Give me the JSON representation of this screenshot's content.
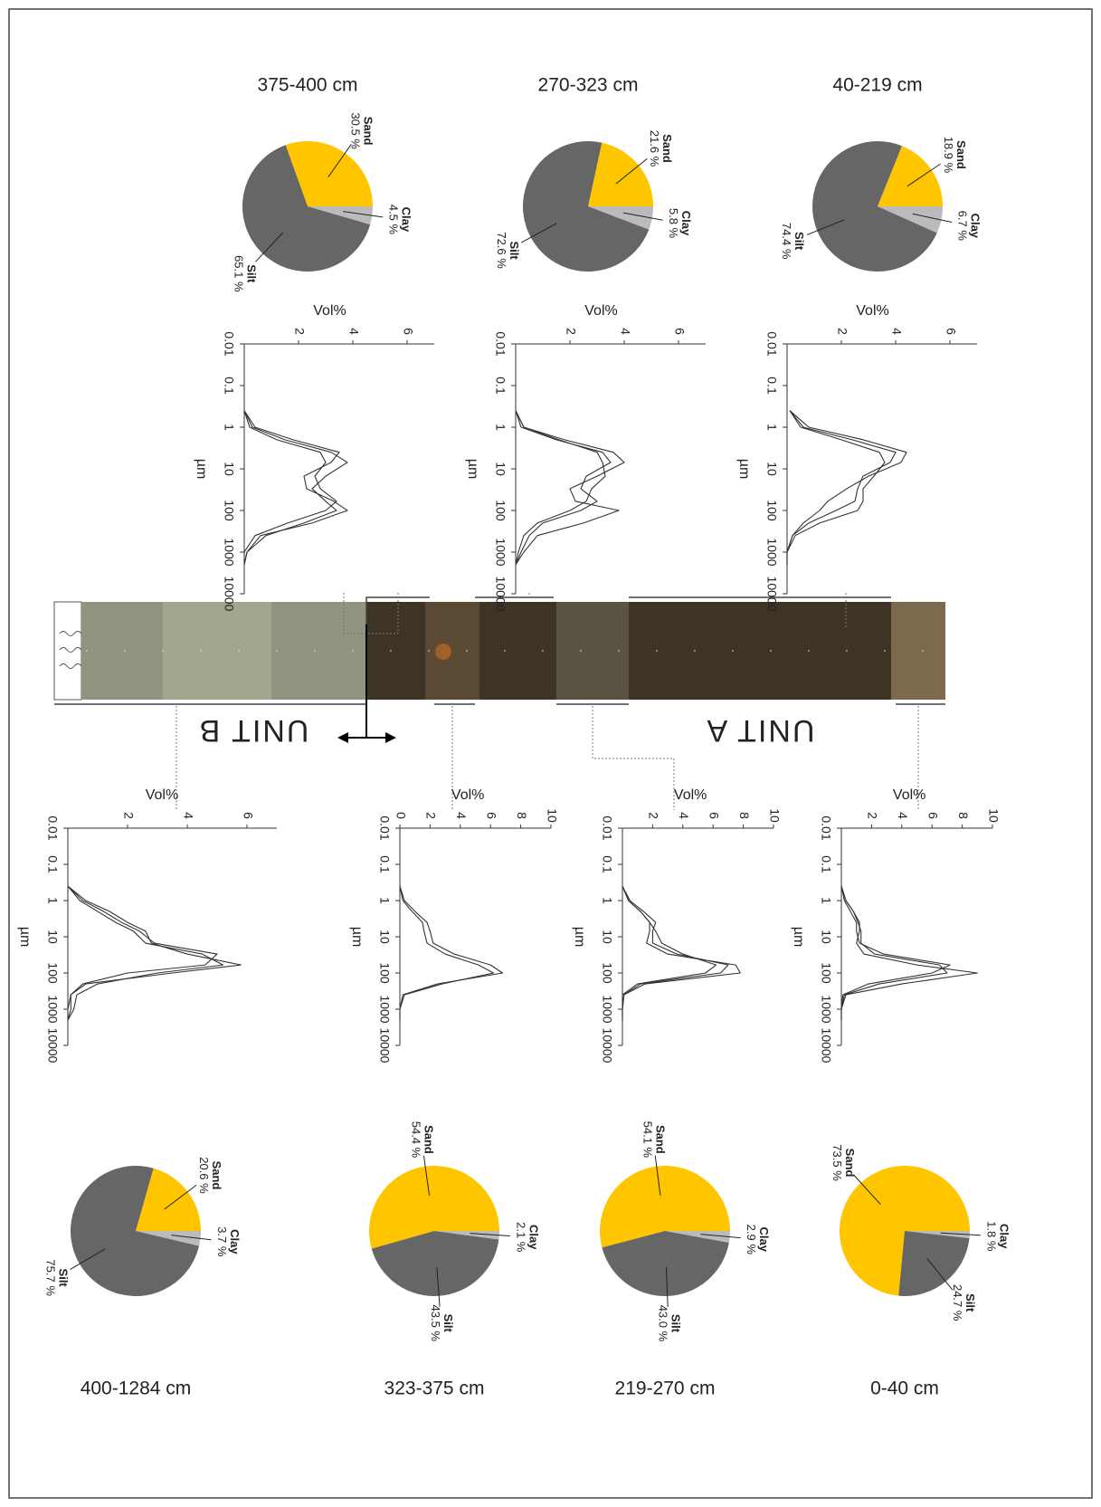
{
  "chart_data": [
    {
      "type": "pie",
      "title": "375-400 cm",
      "categories": [
        "Sand",
        "Clay",
        "Silt"
      ],
      "values": [
        30.5,
        4.5,
        65.1
      ],
      "value_labels": [
        "30.5 %",
        "4.5 %",
        "65.1 %"
      ],
      "colors": [
        "#ffc600",
        "#bbbbbb",
        "#666666"
      ]
    },
    {
      "type": "line",
      "x_label": "µm",
      "y_label": "Vol%",
      "log_x": true,
      "xlim": [
        0.01,
        10000
      ],
      "xticks": [
        0.01,
        0.1,
        1,
        10,
        100,
        1000,
        10000
      ],
      "ylim": [
        0,
        7
      ],
      "yticks": [
        2,
        4,
        6
      ],
      "x": [
        0.4,
        1,
        2,
        4,
        7,
        15,
        30,
        60,
        100,
        200,
        400,
        1000,
        2000
      ],
      "series": [
        {
          "color": "#333333",
          "values": [
            0,
            0.3,
            1.5,
            3.2,
            3.8,
            3.0,
            2.5,
            3.0,
            3.4,
            2.2,
            0.8,
            0.1,
            0
          ]
        },
        {
          "color": "#333333",
          "values": [
            0,
            0.4,
            1.8,
            3.5,
            3.2,
            2.2,
            2.3,
            3.3,
            3.8,
            2.5,
            0.6,
            0.1,
            0
          ]
        },
        {
          "color": "#333333",
          "values": [
            0,
            0.2,
            1.2,
            2.8,
            3.0,
            2.6,
            2.8,
            3.4,
            3.0,
            1.6,
            0.4,
            0,
            0
          ]
        }
      ]
    },
    {
      "type": "pie",
      "title": "270-323 cm",
      "categories": [
        "Sand",
        "Clay",
        "Silt"
      ],
      "values": [
        21.6,
        5.8,
        72.6
      ],
      "value_labels": [
        "21.6 %",
        "5.8 %",
        "72.6 %"
      ],
      "colors": [
        "#ffc600",
        "#bbbbbb",
        "#666666"
      ]
    },
    {
      "type": "line",
      "x_label": "µm",
      "y_label": "Vol%",
      "log_x": true,
      "xlim": [
        0.01,
        10000
      ],
      "xticks": [
        0.01,
        0.1,
        1,
        10,
        100,
        1000,
        10000
      ],
      "ylim": [
        0,
        7
      ],
      "yticks": [
        2,
        4,
        6
      ],
      "x": [
        0.4,
        1,
        2,
        4,
        7,
        15,
        30,
        60,
        100,
        200,
        400,
        1000,
        2000
      ],
      "series": [
        {
          "color": "#333333",
          "values": [
            0,
            0.3,
            1.8,
            3.6,
            4.0,
            3.0,
            2.0,
            2.2,
            3.8,
            2.5,
            0.8,
            0.3,
            0
          ]
        },
        {
          "color": "#333333",
          "values": [
            0,
            0.2,
            1.5,
            3.2,
            3.5,
            2.6,
            2.4,
            3.0,
            2.4,
            1.0,
            0.5,
            0.2,
            0
          ]
        },
        {
          "color": "#333333",
          "values": [
            0,
            0.3,
            1.6,
            3.0,
            3.2,
            3.3,
            2.8,
            2.6,
            2.0,
            0.8,
            0.3,
            0.1,
            0
          ]
        }
      ]
    },
    {
      "type": "pie",
      "title": "40-219 cm",
      "categories": [
        "Sand",
        "Clay",
        "Silt"
      ],
      "values": [
        18.9,
        6.7,
        74.4
      ],
      "value_labels": [
        "18.9 %",
        "6.7 %",
        "74.4 %"
      ],
      "colors": [
        "#ffc600",
        "#bbbbbb",
        "#666666"
      ]
    },
    {
      "type": "line",
      "x_label": "µm",
      "y_label": "Vol%",
      "log_x": true,
      "xlim": [
        0.01,
        10000
      ],
      "xticks": [
        0.01,
        0.1,
        1,
        10,
        100,
        1000,
        10000
      ],
      "ylim": [
        0,
        7
      ],
      "yticks": [
        2,
        4,
        6
      ],
      "x": [
        0.4,
        1,
        2,
        4,
        7,
        15,
        30,
        60,
        100,
        200,
        400,
        1000,
        2000
      ],
      "series": [
        {
          "color": "#333333",
          "values": [
            0.1,
            0.8,
            2.8,
            4.4,
            4.2,
            3.0,
            2.2,
            1.5,
            1.2,
            0.6,
            0.2,
            0,
            0
          ]
        },
        {
          "color": "#333333",
          "values": [
            0.1,
            0.6,
            2.4,
            4.0,
            3.8,
            2.8,
            2.6,
            2.5,
            1.8,
            0.8,
            0.2,
            0,
            0
          ]
        },
        {
          "color": "#333333",
          "values": [
            0.1,
            0.5,
            2.0,
            3.4,
            3.6,
            3.2,
            2.8,
            2.8,
            2.6,
            1.2,
            0.3,
            0,
            0
          ]
        }
      ]
    },
    {
      "type": "pie",
      "title": "400-1284 cm",
      "categories": [
        "Sand",
        "Clay",
        "Silt"
      ],
      "values": [
        20.6,
        3.7,
        75.7
      ],
      "value_labels": [
        "20.6 %",
        "3.7 %",
        "75.7 %"
      ],
      "colors": [
        "#ffc600",
        "#bbbbbb",
        "#666666"
      ]
    },
    {
      "type": "line",
      "x_label": "µm",
      "y_label": "Vol%",
      "log_x": true,
      "xlim": [
        0.01,
        10000
      ],
      "xticks": [
        0.01,
        0.1,
        1,
        10,
        100,
        1000,
        10000
      ],
      "ylim": [
        0,
        7
      ],
      "yticks": [
        2,
        4,
        6
      ],
      "x": [
        0.4,
        1,
        2,
        4,
        7,
        15,
        30,
        60,
        100,
        200,
        400,
        1000,
        2000
      ],
      "series": [
        {
          "color": "#333333",
          "values": [
            0,
            0.6,
            1.4,
            2.0,
            2.6,
            2.8,
            4.0,
            5.8,
            3.5,
            0.6,
            0.1,
            0,
            0
          ]
        },
        {
          "color": "#333333",
          "values": [
            0,
            0.5,
            1.2,
            1.8,
            2.4,
            2.9,
            5.0,
            4.6,
            2.0,
            0.5,
            0.1,
            0.1,
            0
          ]
        },
        {
          "color": "#333333",
          "values": [
            0,
            0.4,
            1.0,
            1.6,
            2.2,
            2.6,
            4.5,
            5.2,
            3.0,
            1.0,
            0.3,
            0.2,
            0
          ]
        }
      ]
    },
    {
      "type": "pie",
      "title": "323-375 cm",
      "categories": [
        "Sand",
        "Clay",
        "Silt"
      ],
      "values": [
        54.4,
        2.1,
        43.5
      ],
      "value_labels": [
        "54.4 %",
        "2.1 %",
        "43.5 %"
      ],
      "colors": [
        "#ffc600",
        "#bbbbbb",
        "#666666"
      ]
    },
    {
      "type": "line",
      "x_label": "µm",
      "y_label": "Vol%",
      "log_x": true,
      "xlim": [
        0.01,
        10000
      ],
      "xticks": [
        0.01,
        0.1,
        1,
        10,
        100,
        1000,
        10000
      ],
      "ylim": [
        0,
        10
      ],
      "yticks": [
        0,
        2,
        4,
        6,
        8,
        10
      ],
      "x": [
        0.4,
        1,
        2,
        4,
        7,
        15,
        30,
        60,
        100,
        200,
        400,
        1000,
        2000
      ],
      "series": [
        {
          "color": "#333333",
          "values": [
            0,
            0.3,
            1.0,
            1.8,
            2.0,
            2.2,
            3.6,
            6.0,
            6.8,
            2.5,
            0.2,
            0,
            0
          ]
        },
        {
          "color": "#333333",
          "values": [
            0,
            0.2,
            0.8,
            1.5,
            1.6,
            1.8,
            3.0,
            5.2,
            6.2,
            2.8,
            0.3,
            0,
            0
          ]
        }
      ]
    },
    {
      "type": "pie",
      "title": "219-270 cm",
      "categories": [
        "Sand",
        "Clay",
        "Silt"
      ],
      "values": [
        54.1,
        2.9,
        43.0
      ],
      "value_labels": [
        "54.1 %",
        "2.9 %",
        "43.0 %"
      ],
      "colors": [
        "#ffc600",
        "#bbbbbb",
        "#666666"
      ]
    },
    {
      "type": "line",
      "x_label": "µm",
      "y_label": "Vol%",
      "log_x": true,
      "xlim": [
        0.01,
        10000
      ],
      "xticks": [
        0.01,
        0.1,
        1,
        10,
        100,
        1000,
        10000
      ],
      "ylim": [
        0,
        10
      ],
      "yticks": [
        2,
        4,
        6,
        8,
        10
      ],
      "x": [
        0.4,
        1,
        2,
        4,
        7,
        15,
        30,
        60,
        100,
        200,
        400,
        1000,
        2000
      ],
      "series": [
        {
          "color": "#333333",
          "values": [
            0,
            0.4,
            1.2,
            1.8,
            1.8,
            1.6,
            3.0,
            7.5,
            7.8,
            1.5,
            0.1,
            0,
            0
          ]
        },
        {
          "color": "#333333",
          "values": [
            0,
            0.5,
            1.4,
            2.2,
            2.0,
            2.0,
            3.6,
            7.0,
            6.5,
            1.2,
            0.1,
            0,
            0
          ]
        },
        {
          "color": "#333333",
          "values": [
            0,
            0.4,
            1.2,
            1.8,
            2.2,
            2.6,
            4.0,
            6.2,
            5.5,
            1.0,
            0,
            0,
            0
          ]
        }
      ]
    },
    {
      "type": "pie",
      "title": "0-40 cm",
      "categories": [
        "Sand",
        "Clay",
        "Silt"
      ],
      "values": [
        73.5,
        1.8,
        24.7
      ],
      "value_labels": [
        "73.5 %",
        "1.8 %",
        "24.7 %"
      ],
      "colors": [
        "#ffc600",
        "#bbbbbb",
        "#666666"
      ]
    },
    {
      "type": "line",
      "x_label": "µm",
      "y_label": "Vol%",
      "log_x": true,
      "xlim": [
        0.01,
        10000
      ],
      "xticks": [
        0.01,
        0.1,
        1,
        10,
        100,
        1000,
        10000
      ],
      "ylim": [
        0,
        10
      ],
      "yticks": [
        2,
        4,
        6,
        8,
        10
      ],
      "x": [
        0.4,
        1,
        2,
        4,
        7,
        15,
        30,
        60,
        100,
        200,
        400,
        1000,
        2000
      ],
      "series": [
        {
          "color": "#333333",
          "values": [
            0,
            0.3,
            0.8,
            1.2,
            1.2,
            1.0,
            1.5,
            5.0,
            9.0,
            4.0,
            0.3,
            0,
            0
          ]
        },
        {
          "color": "#333333",
          "values": [
            0,
            0.3,
            0.8,
            1.1,
            1.3,
            1.3,
            2.2,
            6.5,
            7.0,
            2.5,
            0.2,
            0,
            0
          ]
        },
        {
          "color": "#333333",
          "values": [
            0,
            0.2,
            0.6,
            1.0,
            1.0,
            1.2,
            2.8,
            7.2,
            6.0,
            1.8,
            0.1,
            0,
            0
          ]
        }
      ]
    }
  ],
  "core": {
    "units": [
      "UNIT A",
      "UNIT B"
    ]
  }
}
